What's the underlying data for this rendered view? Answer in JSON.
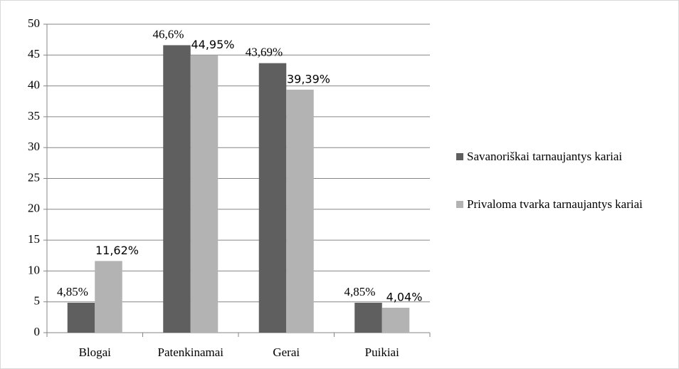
{
  "chart_data": {
    "type": "bar",
    "categories": [
      "Blogai",
      "Patenkinamai",
      "Gerai",
      "Puikiai"
    ],
    "series": [
      {
        "name": "Savanoriškai tarnaujantys kariai",
        "color": "#5f5f5f",
        "values": [
          4.85,
          46.6,
          43.69,
          4.85
        ],
        "value_labels": [
          "4,85%",
          "46,6%",
          "43,69%",
          "4,85%"
        ]
      },
      {
        "name": "Privaloma tvarka tarnaujantys kariai",
        "color": "#b3b3b3",
        "values": [
          11.62,
          44.95,
          39.39,
          4.04
        ],
        "value_labels": [
          "11,62%",
          "44,95%",
          "39,39%",
          "4,04%"
        ]
      }
    ],
    "ylim": [
      0,
      50
    ],
    "yticks": [
      0,
      5,
      10,
      15,
      20,
      25,
      30,
      35,
      40,
      45,
      50
    ],
    "grid": true,
    "legend": "right"
  }
}
